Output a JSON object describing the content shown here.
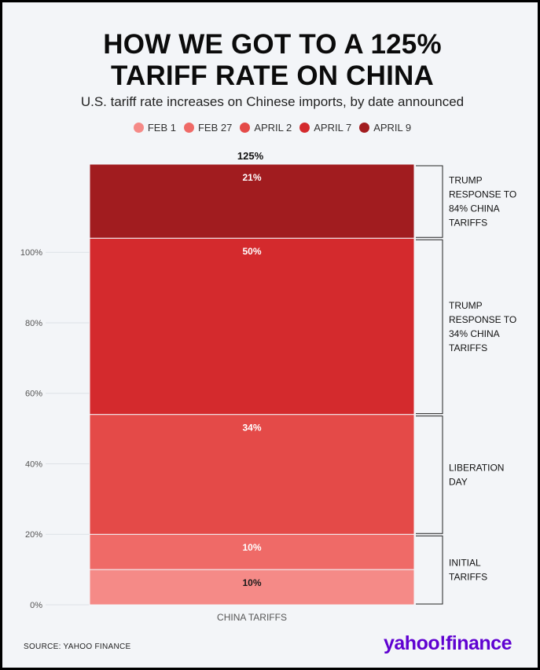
{
  "header": {
    "title_line1": "HOW WE GOT TO A 125%",
    "title_line2": "TARIFF RATE ON CHINA",
    "subtitle": "U.S. tariff rate increases on Chinese imports, by date announced"
  },
  "legend": [
    {
      "label": "FEB 1",
      "color": "#f58a87"
    },
    {
      "label": "FEB 27",
      "color": "#ef6a67"
    },
    {
      "label": "APRIL 2",
      "color": "#e44a48"
    },
    {
      "label": "APRIL 7",
      "color": "#d42a2d"
    },
    {
      "label": "APRIL 9",
      "color": "#a11c1f"
    }
  ],
  "chart_data": {
    "type": "bar",
    "stacked": true,
    "categories": [
      "CHINA TARIFFS"
    ],
    "series": [
      {
        "name": "FEB 1",
        "values": [
          10
        ],
        "label": "10%",
        "color": "#f58a87",
        "label_color": "#1a1a1a"
      },
      {
        "name": "FEB 27",
        "values": [
          10
        ],
        "label": "10%",
        "color": "#ef6a67",
        "label_color": "#ffffff"
      },
      {
        "name": "APRIL 2",
        "values": [
          34
        ],
        "label": "34%",
        "color": "#e44a48",
        "label_color": "#ffffff"
      },
      {
        "name": "APRIL 7",
        "values": [
          50
        ],
        "label": "50%",
        "color": "#d42a2d",
        "label_color": "#ffffff"
      },
      {
        "name": "APRIL 9",
        "values": [
          21
        ],
        "label": "21%",
        "color": "#a11c1f",
        "label_color": "#ffffff"
      }
    ],
    "total_label": "125%",
    "yticks": [
      "0%",
      "20%",
      "40%",
      "60%",
      "80%",
      "100%"
    ],
    "ytick_values": [
      0,
      20,
      40,
      60,
      80,
      100
    ],
    "ylim": [
      0,
      125
    ],
    "grid": true,
    "annotations": [
      {
        "from": 0,
        "to": 20,
        "lines": [
          "INITIAL",
          "TARIFFS"
        ]
      },
      {
        "from": 20,
        "to": 54,
        "lines": [
          "LIBERATION",
          "DAY"
        ]
      },
      {
        "from": 54,
        "to": 104,
        "lines": [
          "TRUMP",
          "RESPONSE TO",
          "34% CHINA",
          "TARIFFS"
        ]
      },
      {
        "from": 104,
        "to": 125,
        "lines": [
          "TRUMP",
          "RESPONSE TO",
          "84% CHINA",
          "TARIFFS"
        ]
      }
    ]
  },
  "footer": {
    "source": "SOURCE:  YAHOO FINANCE",
    "logo": "yahoo!finance"
  }
}
